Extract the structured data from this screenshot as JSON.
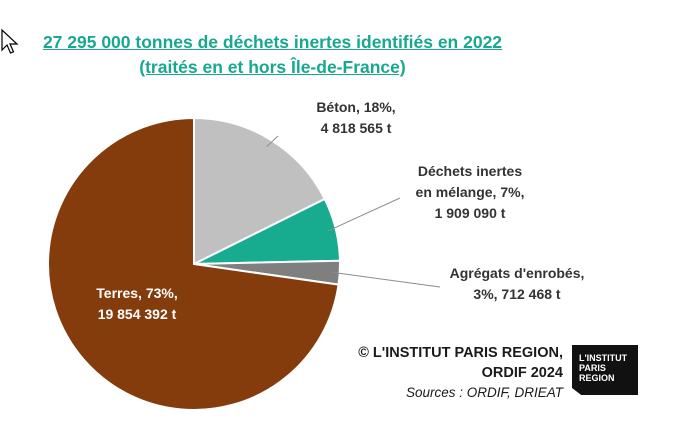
{
  "title": {
    "line1": "27 295 000 tonnes de déchets inertes identifiés en 2022",
    "line2": "(traités en et hors Île-de-France)"
  },
  "chart_data": {
    "type": "pie",
    "title": "27 295 000 tonnes de déchets inertes identifiés en 2022 (traités en et hors Île-de-France)",
    "slices": [
      {
        "name": "Béton",
        "percent": 18,
        "value": 4818565,
        "color": "#c0c0c0",
        "label_lines": [
          "Béton, 18%,",
          "4 818 565 t"
        ]
      },
      {
        "name": "Déchets inertes en mélange",
        "percent": 7,
        "value": 1909090,
        "color": "#17ab90",
        "label_lines": [
          "Déchets inertes",
          "en mélange, 7%,",
          "1 909 090 t"
        ]
      },
      {
        "name": "Agrégats d'enrobés",
        "percent": 3,
        "value": 712468,
        "color": "#7f7f7f",
        "label_lines": [
          "Agrégats  d'enrobés,",
          "3%, 712 468 t"
        ]
      },
      {
        "name": "Terres",
        "percent": 73,
        "value": 19854392,
        "color": "#843c0c",
        "label_lines": [
          "Terres, 73%,",
          "19 854 392 t"
        ]
      }
    ]
  },
  "credit": {
    "line1": "© L'INSTITUT PARIS REGION,",
    "line2": "ORDIF 2024",
    "sources": "Sources : ORDIF, DRIEAT"
  },
  "logo": {
    "line1": "L'INSTITUT",
    "line2": "PARIS",
    "line3": "REGION"
  }
}
